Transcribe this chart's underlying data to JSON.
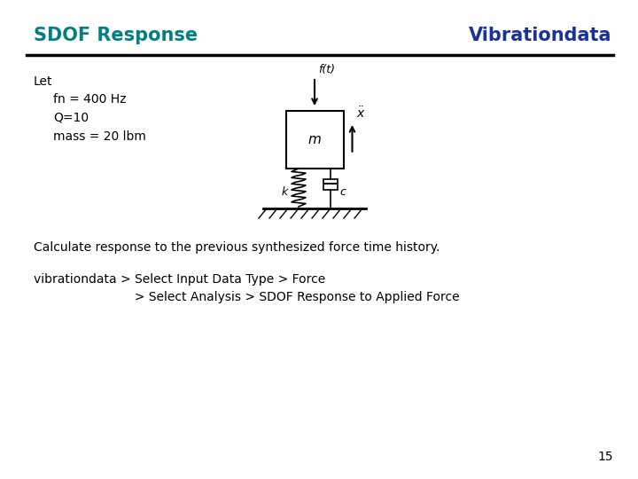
{
  "title_left": "SDOF Response",
  "title_right": "Vibrationdata",
  "title_left_color": "#008080",
  "title_right_color": "#1a3399",
  "line_color": "#000000",
  "bg_color": "#ffffff",
  "let_text": "Let",
  "param1": "fn = 400 Hz",
  "param2": "Q=10",
  "param3": "mass = 20 lbm",
  "body_text1": "Calculate response to the previous synthesized force time history.",
  "body_text2": "vibrationdata > Select Input Data Type > Force",
  "body_text3": "                          > Select Analysis > SDOF Response to Applied Force",
  "page_number": "15",
  "title_fontsize": 15,
  "body_fontsize": 10,
  "param_fontsize": 10
}
